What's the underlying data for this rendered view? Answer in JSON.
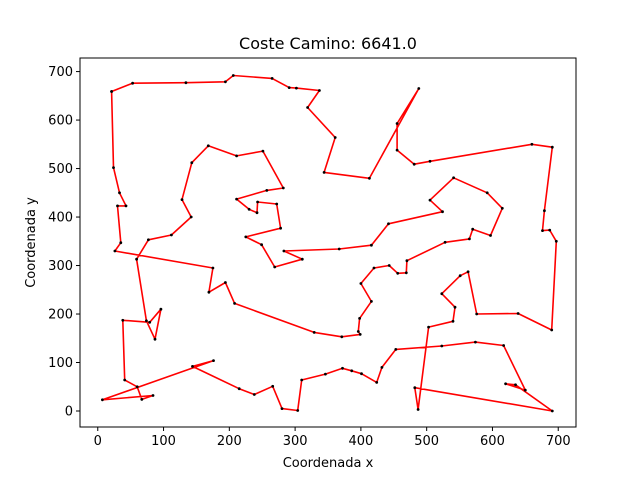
{
  "chart_data": {
    "type": "line",
    "title": "Coste Camino: 6641.0",
    "xlabel": "Coordenada x",
    "ylabel": "Coordenada y",
    "xlim": [
      -27,
      727
    ],
    "ylim": [
      -33,
      728
    ],
    "xticks": [
      0,
      100,
      200,
      300,
      400,
      500,
      600,
      700
    ],
    "yticks": [
      0,
      100,
      200,
      300,
      400,
      500,
      600,
      700
    ],
    "grid": false,
    "line_color": "#ff0000",
    "marker_color": "#000000",
    "series": [
      {
        "points": [
          [
            21,
            659
          ],
          [
            53,
            676
          ],
          [
            134,
            677
          ],
          [
            194,
            679
          ],
          [
            206,
            692
          ],
          [
            265,
            686
          ],
          [
            291,
            667
          ],
          [
            302,
            666
          ],
          [
            337,
            661
          ],
          [
            319,
            626
          ],
          [
            361,
            564
          ],
          [
            344,
            492
          ],
          [
            413,
            480
          ],
          [
            488,
            665
          ],
          [
            455,
            593
          ],
          [
            455,
            538
          ],
          [
            481,
            509
          ],
          [
            505,
            515
          ],
          [
            660,
            550
          ],
          [
            691,
            544
          ],
          [
            679,
            413
          ],
          [
            676,
            372
          ],
          [
            687,
            373
          ],
          [
            697,
            350
          ],
          [
            690,
            167
          ],
          [
            639,
            201
          ],
          [
            576,
            200
          ],
          [
            563,
            287
          ],
          [
            551,
            279
          ],
          [
            523,
            242
          ],
          [
            543,
            214
          ],
          [
            540,
            185
          ],
          [
            503,
            173
          ],
          [
            487,
            3
          ],
          [
            482,
            48
          ],
          [
            691,
            0
          ],
          [
            635,
            54
          ],
          [
            620,
            56
          ],
          [
            650,
            43
          ],
          [
            617,
            135
          ],
          [
            574,
            142
          ],
          [
            523,
            134
          ],
          [
            453,
            127
          ],
          [
            432,
            90
          ],
          [
            424,
            59
          ],
          [
            401,
            77
          ],
          [
            386,
            83
          ],
          [
            372,
            88
          ],
          [
            346,
            76
          ],
          [
            310,
            64
          ],
          [
            304,
            1
          ],
          [
            280,
            5
          ],
          [
            266,
            51
          ],
          [
            238,
            34
          ],
          [
            215,
            46
          ],
          [
            144,
            92
          ],
          [
            176,
            104
          ],
          [
            7,
            23
          ],
          [
            84,
            32
          ],
          [
            67,
            24
          ],
          [
            60,
            50
          ],
          [
            41,
            64
          ],
          [
            38,
            187
          ],
          [
            79,
            183
          ],
          [
            96,
            210
          ],
          [
            87,
            148
          ],
          [
            74,
            186
          ],
          [
            59,
            313
          ],
          [
            77,
            353
          ],
          [
            112,
            363
          ],
          [
            142,
            400
          ],
          [
            128,
            436
          ],
          [
            143,
            512
          ],
          [
            168,
            547
          ],
          [
            211,
            526
          ],
          [
            251,
            536
          ],
          [
            282,
            460
          ],
          [
            257,
            455
          ],
          [
            211,
            437
          ],
          [
            230,
            416
          ],
          [
            242,
            409
          ],
          [
            243,
            431
          ],
          [
            272,
            427
          ],
          [
            278,
            377
          ],
          [
            225,
            359
          ],
          [
            249,
            343
          ],
          [
            269,
            297
          ],
          [
            311,
            313
          ],
          [
            283,
            330
          ],
          [
            367,
            334
          ],
          [
            416,
            342
          ],
          [
            442,
            386
          ],
          [
            524,
            411
          ],
          [
            505,
            435
          ],
          [
            541,
            481
          ],
          [
            592,
            450
          ],
          [
            615,
            418
          ],
          [
            597,
            362
          ],
          [
            570,
            375
          ],
          [
            565,
            355
          ],
          [
            528,
            348
          ],
          [
            470,
            310
          ],
          [
            469,
            285
          ],
          [
            456,
            284
          ],
          [
            443,
            300
          ],
          [
            420,
            295
          ],
          [
            400,
            263
          ],
          [
            416,
            226
          ],
          [
            398,
            191
          ],
          [
            396,
            164
          ],
          [
            399,
            158
          ],
          [
            371,
            153
          ],
          [
            329,
            162
          ],
          [
            208,
            222
          ],
          [
            194,
            265
          ],
          [
            169,
            245
          ],
          [
            175,
            295
          ],
          [
            26,
            330
          ],
          [
            35,
            347
          ],
          [
            30,
            423
          ],
          [
            43,
            423
          ],
          [
            33,
            450
          ],
          [
            24,
            502
          ],
          [
            21,
            659
          ]
        ]
      }
    ]
  }
}
